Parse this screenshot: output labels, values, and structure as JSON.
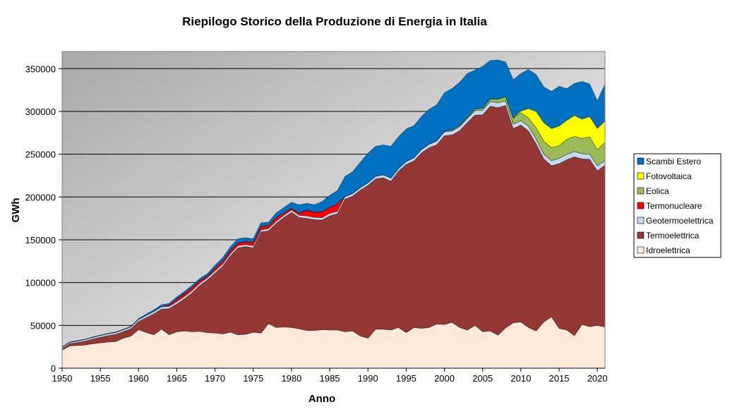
{
  "chart_data": {
    "type": "area",
    "stacked": true,
    "title": "Riepilogo Storico della Produzione di Energia in Italia",
    "xlabel": "Anno",
    "ylabel": "GWh",
    "xlim": [
      1950,
      2021
    ],
    "ylim": [
      0,
      370000
    ],
    "x_ticks": [
      1950,
      1955,
      1960,
      1965,
      1970,
      1975,
      1980,
      1985,
      1990,
      1995,
      2000,
      2005,
      2010,
      2015,
      2020
    ],
    "y_ticks": [
      0,
      50000,
      100000,
      150000,
      200000,
      250000,
      300000,
      350000
    ],
    "grid": "horizontal",
    "legend_position": "right",
    "x": [
      1950,
      1951,
      1952,
      1953,
      1954,
      1955,
      1956,
      1957,
      1958,
      1959,
      1960,
      1961,
      1962,
      1963,
      1964,
      1965,
      1966,
      1967,
      1968,
      1969,
      1970,
      1971,
      1972,
      1973,
      1974,
      1975,
      1976,
      1977,
      1978,
      1979,
      1980,
      1981,
      1982,
      1983,
      1984,
      1985,
      1986,
      1987,
      1988,
      1989,
      1990,
      1991,
      1992,
      1993,
      1994,
      1995,
      1996,
      1997,
      1998,
      1999,
      2000,
      2001,
      2002,
      2003,
      2004,
      2005,
      2006,
      2007,
      2008,
      2009,
      2010,
      2011,
      2012,
      2013,
      2014,
      2015,
      2016,
      2017,
      2018,
      2019,
      2020,
      2021
    ],
    "series": [
      {
        "name": "Idroelettrica",
        "color": "#fde9d9",
        "values": [
          21000,
          26000,
          26500,
          27000,
          28500,
          29500,
          30500,
          31000,
          35000,
          37500,
          45000,
          41500,
          39000,
          45500,
          39000,
          42500,
          43500,
          42500,
          43000,
          41500,
          41000,
          40000,
          42000,
          39000,
          39500,
          42000,
          41000,
          52000,
          47500,
          48000,
          47500,
          46000,
          44000,
          44000,
          45000,
          44500,
          44500,
          42500,
          43500,
          37500,
          35000,
          45500,
          45500,
          44500,
          47500,
          41500,
          47500,
          46500,
          47500,
          51500,
          51000,
          53500,
          47500,
          44500,
          50000,
          42500,
          43500,
          38500,
          47000,
          53000,
          54000,
          47500,
          43500,
          54000,
          60000,
          46500,
          44500,
          38000,
          51000,
          48500,
          50000,
          48000
        ]
      },
      {
        "name": "Termoelettrica",
        "color": "#953735",
        "values": [
          2000,
          2500,
          3500,
          4500,
          5500,
          6500,
          7500,
          8500,
          7500,
          8500,
          9500,
          17500,
          24500,
          23500,
          30500,
          32500,
          37500,
          45500,
          53500,
          61500,
          70000,
          79000,
          89000,
          101500,
          102500,
          98500,
          118000,
          108500,
          121500,
          128000,
          134500,
          130000,
          131000,
          129500,
          128000,
          133500,
          136000,
          155000,
          157500,
          170500,
          178500,
          175500,
          177000,
          174000,
          182500,
          196500,
          194500,
          205000,
          210000,
          209500,
          220500,
          219000,
          230000,
          242500,
          245500,
          253500,
          262500,
          266000,
          260000,
          227000,
          230000,
          229500,
          218500,
          190500,
          176500,
          192500,
          199000,
          209000,
          193500,
          195500,
          180500,
          189000
        ]
      },
      {
        "name": "Geotermoelettrica",
        "color": "#c6d9f1",
        "values": [
          1500,
          1600,
          1800,
          2000,
          2000,
          2100,
          2200,
          2300,
          2300,
          2400,
          2500,
          2600,
          2700,
          2700,
          2700,
          2700,
          2700,
          2700,
          2800,
          2700,
          2700,
          2700,
          2700,
          2600,
          2500,
          2500,
          2500,
          2600,
          2600,
          2600,
          2700,
          2700,
          2800,
          2700,
          2900,
          2900,
          2800,
          3000,
          3100,
          3000,
          3200,
          3200,
          3400,
          3700,
          3400,
          3400,
          3800,
          3900,
          4200,
          4400,
          4700,
          4500,
          4700,
          4700,
          5400,
          5300,
          5500,
          5600,
          5500,
          5300,
          5400,
          5700,
          5600,
          5700,
          5900,
          6200,
          6300,
          6200,
          6100,
          6100,
          6000,
          5900
        ]
      },
      {
        "name": "Termonucleare",
        "color": "#ff0000",
        "values": [
          0,
          0,
          0,
          0,
          0,
          0,
          0,
          0,
          0,
          0,
          0,
          0,
          0,
          400,
          1500,
          3000,
          3500,
          3500,
          3000,
          1800,
          3200,
          3400,
          3600,
          3200,
          3400,
          3800,
          3800,
          3500,
          4400,
          2600,
          2100,
          2700,
          6800,
          5800,
          6800,
          7000,
          8800,
          0,
          0,
          0,
          0,
          0,
          0,
          0,
          0,
          0,
          0,
          0,
          0,
          0,
          0,
          0,
          0,
          0,
          0,
          0,
          0,
          0,
          0,
          0,
          0,
          0,
          0,
          0,
          0,
          0,
          0,
          0,
          0,
          0,
          0,
          0
        ]
      },
      {
        "name": "Eolica",
        "color": "#9bbb59",
        "values": [
          0,
          0,
          0,
          0,
          0,
          0,
          0,
          0,
          0,
          0,
          0,
          0,
          0,
          0,
          0,
          0,
          0,
          0,
          0,
          0,
          0,
          0,
          0,
          0,
          0,
          0,
          0,
          0,
          0,
          0,
          0,
          0,
          0,
          0,
          0,
          0,
          0,
          0,
          0,
          0,
          0,
          0,
          0,
          0,
          0,
          0,
          0,
          100,
          200,
          400,
          600,
          1200,
          1400,
          1500,
          1900,
          2300,
          3000,
          4000,
          4900,
          6500,
          9100,
          9900,
          13400,
          14900,
          15200,
          14800,
          17700,
          17700,
          17700,
          20200,
          18800,
          20900
        ]
      },
      {
        "name": "Fotovoltaica",
        "color": "#ffff00",
        "values": [
          0,
          0,
          0,
          0,
          0,
          0,
          0,
          0,
          0,
          0,
          0,
          0,
          0,
          0,
          0,
          0,
          0,
          0,
          0,
          0,
          0,
          0,
          0,
          0,
          0,
          0,
          0,
          0,
          0,
          0,
          0,
          0,
          0,
          0,
          0,
          0,
          0,
          0,
          0,
          0,
          0,
          0,
          0,
          0,
          0,
          0,
          0,
          0,
          0,
          0,
          0,
          0,
          0,
          0,
          0,
          0,
          0,
          0,
          200,
          700,
          1900,
          10800,
          18900,
          21600,
          22300,
          22900,
          22100,
          24400,
          22700,
          23700,
          24900,
          25000
        ]
      },
      {
        "name": "Scambi Estero",
        "color": "#0070c0",
        "values": [
          500,
          500,
          500,
          500,
          500,
          500,
          500,
          500,
          500,
          500,
          1000,
          1500,
          2000,
          2000,
          2000,
          2500,
          2500,
          2500,
          2500,
          3000,
          3500,
          4000,
          4500,
          5000,
          4500,
          4500,
          4500,
          4000,
          5500,
          6500,
          7000,
          9500,
          8000,
          9000,
          12000,
          14000,
          15500,
          23500,
          25500,
          29500,
          34500,
          35000,
          35000,
          37000,
          37000,
          38000,
          37500,
          38500,
          40500,
          42000,
          45000,
          48500,
          50500,
          51000,
          45500,
          49000,
          45000,
          46000,
          40000,
          44500,
          44000,
          45500,
          43000,
          42000,
          43500,
          46500,
          37000,
          37500,
          44000,
          38000,
          32200,
          42900
        ]
      }
    ]
  }
}
